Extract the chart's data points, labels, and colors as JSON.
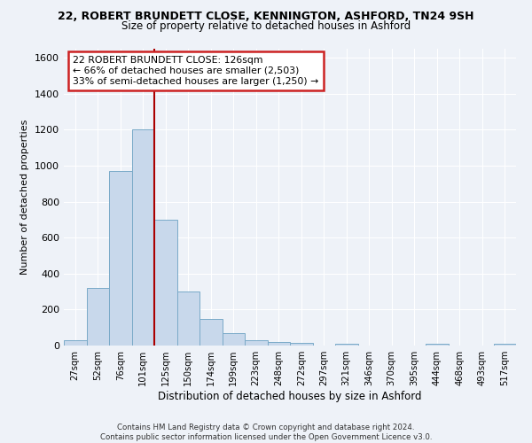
{
  "title_line1": "22, ROBERT BRUNDETT CLOSE, KENNINGTON, ASHFORD, TN24 9SH",
  "title_line2": "Size of property relative to detached houses in Ashford",
  "xlabel": "Distribution of detached houses by size in Ashford",
  "ylabel": "Number of detached properties",
  "bar_color": "#c8d8eb",
  "bar_edge_color": "#7aaac8",
  "vline_color": "#aa0000",
  "annotation_box_color": "#cc2222",
  "footer_line1": "Contains HM Land Registry data © Crown copyright and database right 2024.",
  "footer_line2": "Contains public sector information licensed under the Open Government Licence v3.0.",
  "bins": [
    "27sqm",
    "52sqm",
    "76sqm",
    "101sqm",
    "125sqm",
    "150sqm",
    "174sqm",
    "199sqm",
    "223sqm",
    "248sqm",
    "272sqm",
    "297sqm",
    "321sqm",
    "346sqm",
    "370sqm",
    "395sqm",
    "444sqm",
    "468sqm",
    "493sqm",
    "517sqm"
  ],
  "values": [
    30,
    320,
    970,
    1200,
    700,
    300,
    150,
    70,
    30,
    20,
    15,
    0,
    10,
    0,
    0,
    0,
    10,
    0,
    0,
    10
  ],
  "ylim": [
    0,
    1650
  ],
  "property_bin_index": 4,
  "annotation_line1": "22 ROBERT BRUNDETT CLOSE: 126sqm",
  "annotation_line2": "← 66% of detached houses are smaller (2,503)",
  "annotation_line3": "33% of semi-detached houses are larger (1,250) →",
  "background_color": "#eef2f8",
  "grid_color": "#ffffff"
}
